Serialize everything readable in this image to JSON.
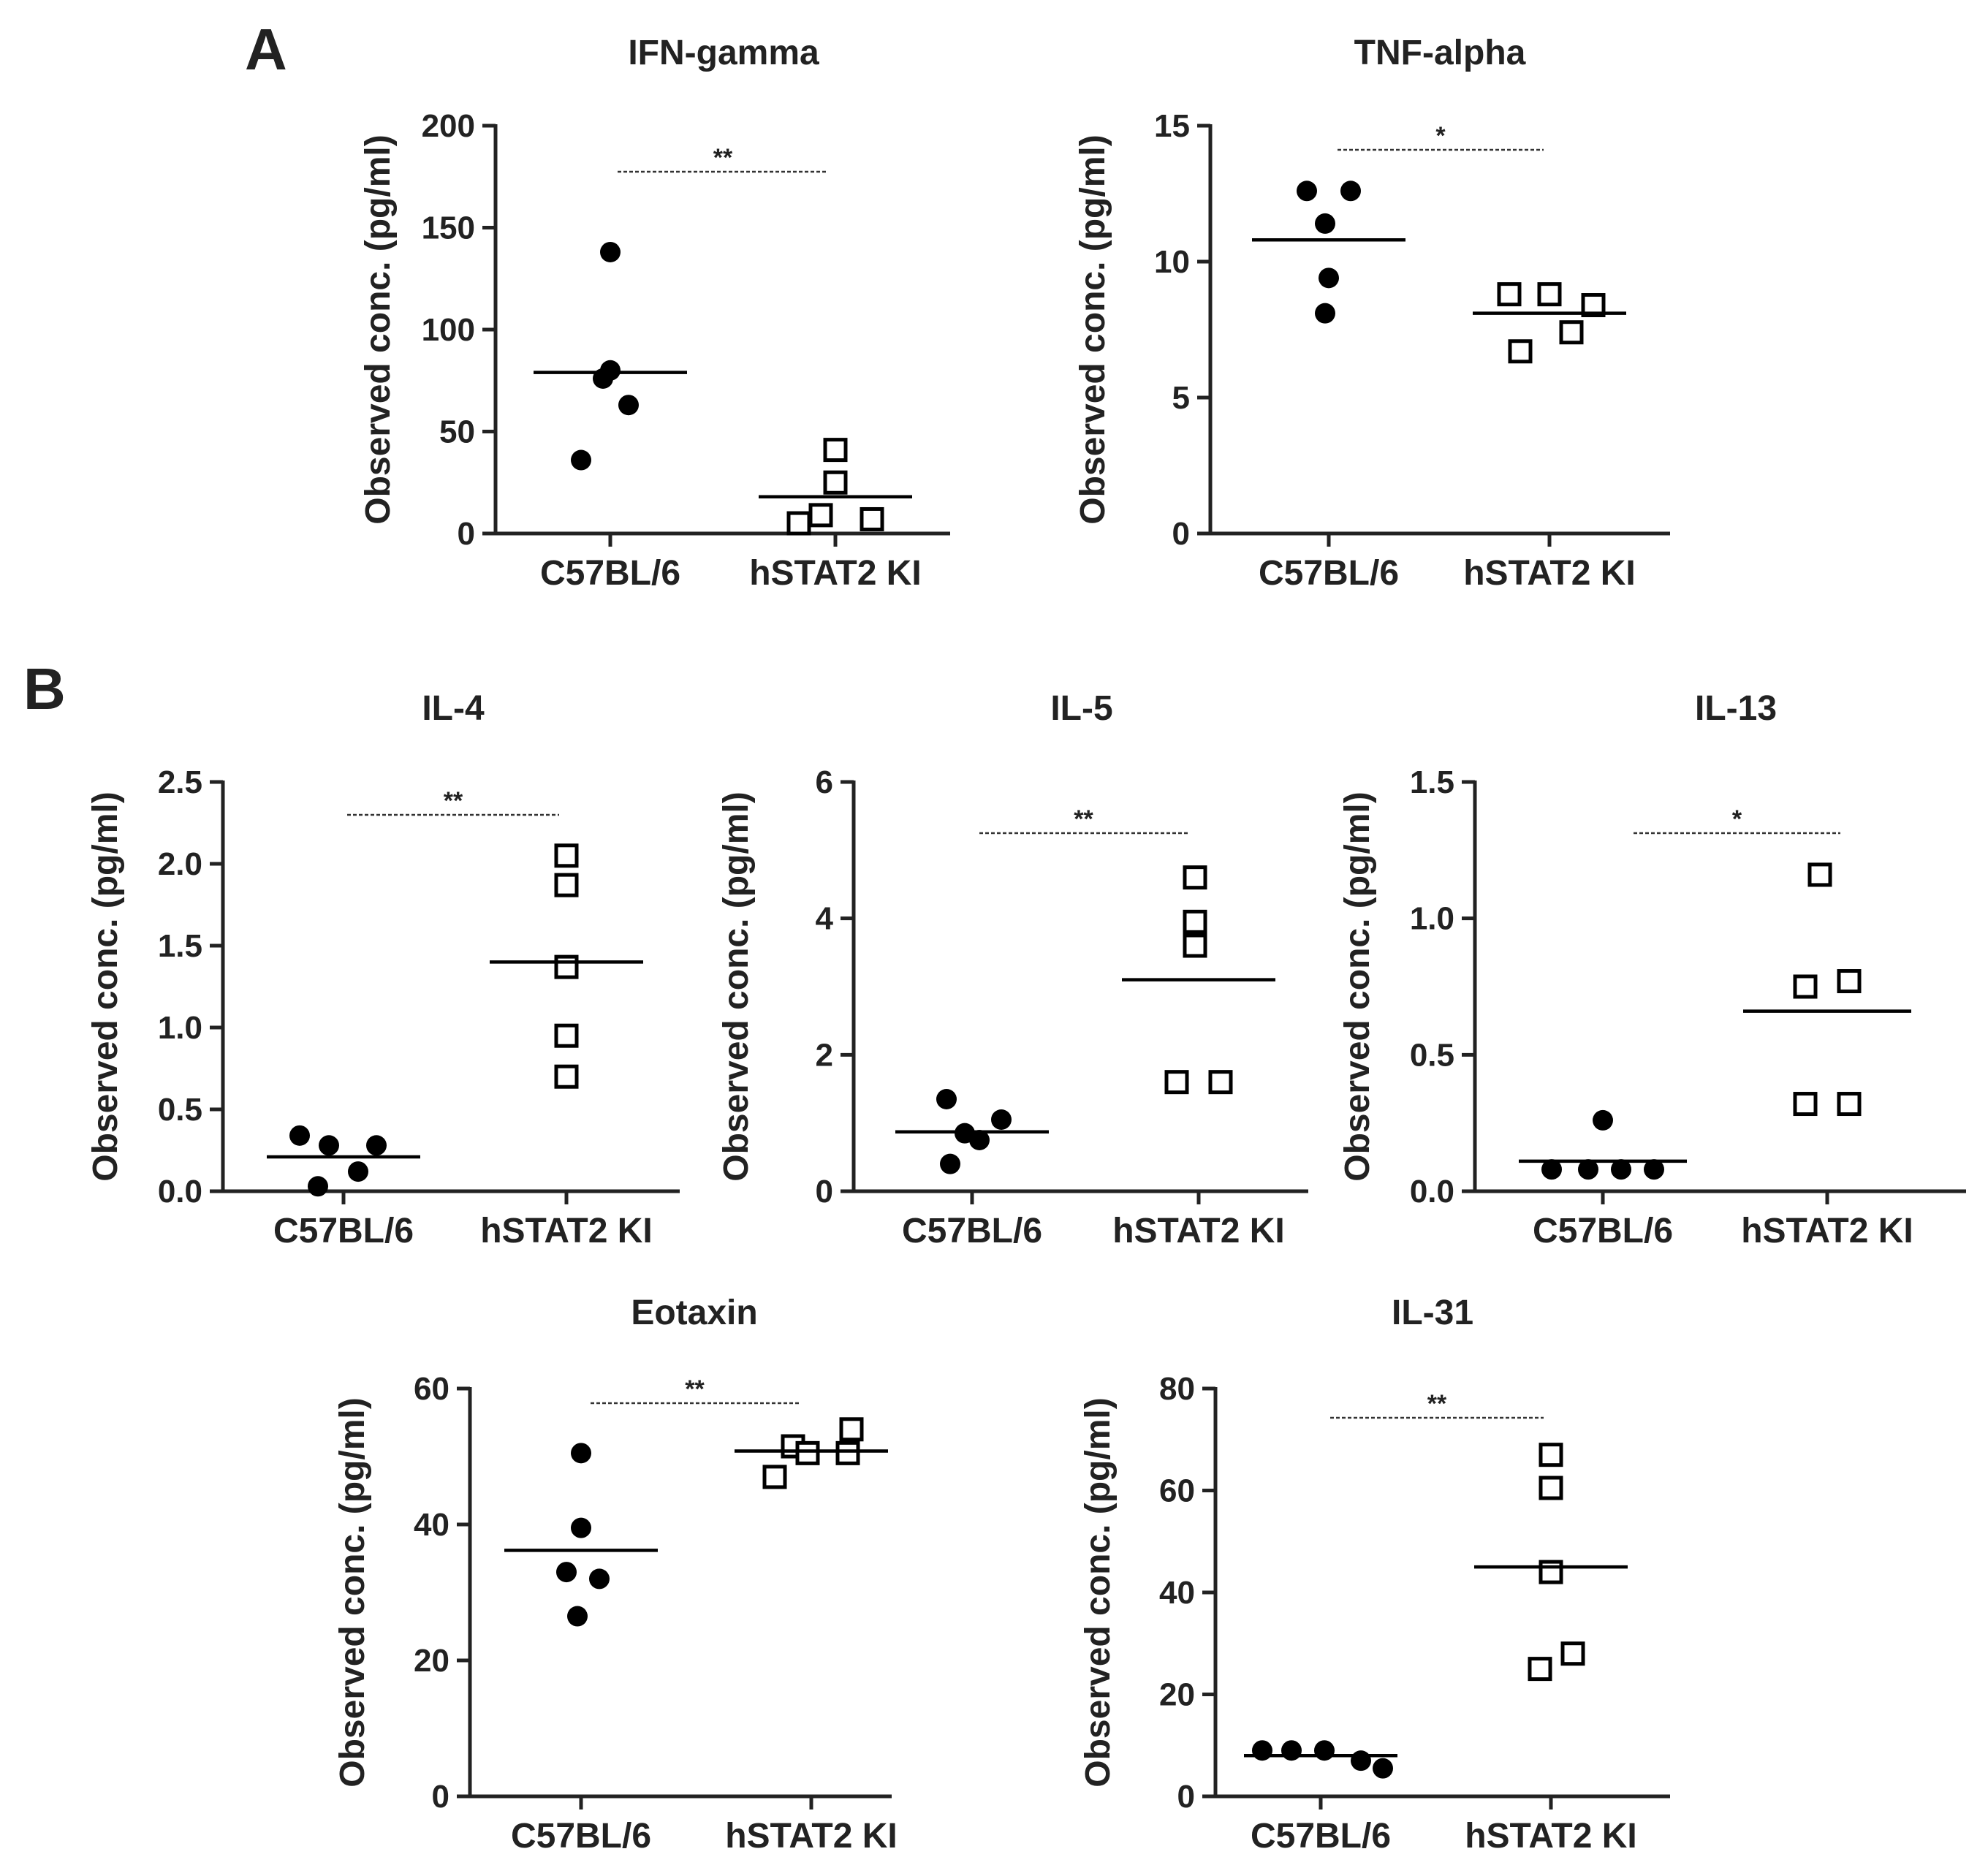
{
  "panels": [
    {
      "label": "A"
    },
    {
      "label": "B"
    }
  ],
  "chart_data": [
    {
      "type": "scatter",
      "title": "IFN-gamma",
      "ylabel": "Observed conc. (pg/ml)",
      "categories": [
        "C57BL/6",
        "hSTAT2 KI"
      ],
      "ylim": [
        0,
        200
      ],
      "yticks": [
        0,
        50,
        100,
        150,
        200
      ],
      "ytick_labels": [
        "0",
        "50",
        "100",
        "150",
        "200"
      ],
      "series": [
        {
          "category": "C57BL/6",
          "marker": "filled-circle",
          "values": [
            138,
            80,
            76,
            63,
            36
          ],
          "median": 79
        },
        {
          "category": "hSTAT2 KI",
          "marker": "open-square",
          "values": [
            41,
            25,
            9,
            7,
            5
          ],
          "median": 18
        }
      ],
      "significance": "**"
    },
    {
      "type": "scatter",
      "title": "TNF-alpha",
      "ylabel": "Observed conc. (pg/ml)",
      "categories": [
        "C57BL/6",
        "hSTAT2 KI"
      ],
      "ylim": [
        0,
        15
      ],
      "yticks": [
        0,
        5,
        10,
        15
      ],
      "ytick_labels": [
        "0",
        "5",
        "10",
        "15"
      ],
      "series": [
        {
          "category": "C57BL/6",
          "marker": "filled-circle",
          "values": [
            12.6,
            12.6,
            11.4,
            9.4,
            8.1
          ],
          "median": 10.8
        },
        {
          "category": "hSTAT2 KI",
          "marker": "open-square",
          "values": [
            8.8,
            8.8,
            8.4,
            7.4,
            6.7
          ],
          "median": 8.1
        }
      ],
      "significance": "*"
    },
    {
      "type": "scatter",
      "title": "IL-4",
      "ylabel": "Observed conc. (pg/ml)",
      "categories": [
        "C57BL/6",
        "hSTAT2 KI"
      ],
      "ylim": [
        0,
        2.5
      ],
      "yticks": [
        0,
        0.5,
        1.0,
        1.5,
        2.0,
        2.5
      ],
      "ytick_labels": [
        "0.0",
        "0.5",
        "1.0",
        "1.5",
        "2.0",
        "2.5"
      ],
      "series": [
        {
          "category": "C57BL/6",
          "marker": "filled-circle",
          "values": [
            0.34,
            0.28,
            0.28,
            0.12,
            0.03
          ],
          "median": 0.21
        },
        {
          "category": "hSTAT2 KI",
          "marker": "open-square",
          "values": [
            2.05,
            1.87,
            1.37,
            0.95,
            0.7
          ],
          "median": 1.4
        }
      ],
      "significance": "**"
    },
    {
      "type": "scatter",
      "title": "IL-5",
      "ylabel": "Observed conc. (pg/ml)",
      "categories": [
        "C57BL/6",
        "hSTAT2 KI"
      ],
      "ylim": [
        0,
        6
      ],
      "yticks": [
        0,
        2,
        4,
        6
      ],
      "ytick_labels": [
        "0",
        "2",
        "4",
        "6"
      ],
      "series": [
        {
          "category": "C57BL/6",
          "marker": "filled-circle",
          "values": [
            1.35,
            1.05,
            0.85,
            0.75,
            0.4
          ],
          "median": 0.87
        },
        {
          "category": "hSTAT2 KI",
          "marker": "open-square",
          "values": [
            4.6,
            3.95,
            3.6,
            1.6,
            1.6
          ],
          "median": 3.1
        }
      ],
      "significance": "**"
    },
    {
      "type": "scatter",
      "title": "IL-13",
      "ylabel": "Observed conc. (pg/ml)",
      "categories": [
        "C57BL/6",
        "hSTAT2 KI"
      ],
      "ylim": [
        0,
        1.5
      ],
      "yticks": [
        0,
        0.5,
        1.0,
        1.5
      ],
      "ytick_labels": [
        "0.0",
        "0.5",
        "1.0",
        "1.5"
      ],
      "series": [
        {
          "category": "C57BL/6",
          "marker": "filled-circle",
          "values": [
            0.26,
            0.08,
            0.08,
            0.08,
            0.08
          ],
          "median": 0.11
        },
        {
          "category": "hSTAT2 KI",
          "marker": "open-square",
          "values": [
            1.16,
            0.77,
            0.75,
            0.32,
            0.32
          ],
          "median": 0.66
        }
      ],
      "significance": "*"
    },
    {
      "type": "scatter",
      "title": "Eotaxin",
      "ylabel": "Observed conc. (pg/ml)",
      "categories": [
        "C57BL/6",
        "hSTAT2 KI"
      ],
      "ylim": [
        0,
        60
      ],
      "yticks": [
        0,
        20,
        40,
        60
      ],
      "ytick_labels": [
        "0",
        "20",
        "40",
        "60"
      ],
      "series": [
        {
          "category": "C57BL/6",
          "marker": "filled-circle",
          "values": [
            50.5,
            39.5,
            33,
            32,
            26.5
          ],
          "median": 36.2
        },
        {
          "category": "hSTAT2 KI",
          "marker": "open-square",
          "values": [
            54,
            51.5,
            50.5,
            50.5,
            47
          ],
          "median": 50.8
        }
      ],
      "significance": "**"
    },
    {
      "type": "scatter",
      "title": "IL-31",
      "ylabel": "Observed conc. (pg/ml)",
      "categories": [
        "C57BL/6",
        "hSTAT2 KI"
      ],
      "ylim": [
        0,
        80
      ],
      "yticks": [
        0,
        20,
        40,
        60,
        80
      ],
      "ytick_labels": [
        "0",
        "20",
        "40",
        "60",
        "80"
      ],
      "series": [
        {
          "category": "C57BL/6",
          "marker": "filled-circle",
          "values": [
            9,
            9,
            9,
            7,
            5.5
          ],
          "median": 8
        },
        {
          "category": "hSTAT2 KI",
          "marker": "open-square",
          "values": [
            67,
            60.5,
            44,
            28,
            25
          ],
          "median": 45
        }
      ],
      "significance": "**"
    }
  ]
}
